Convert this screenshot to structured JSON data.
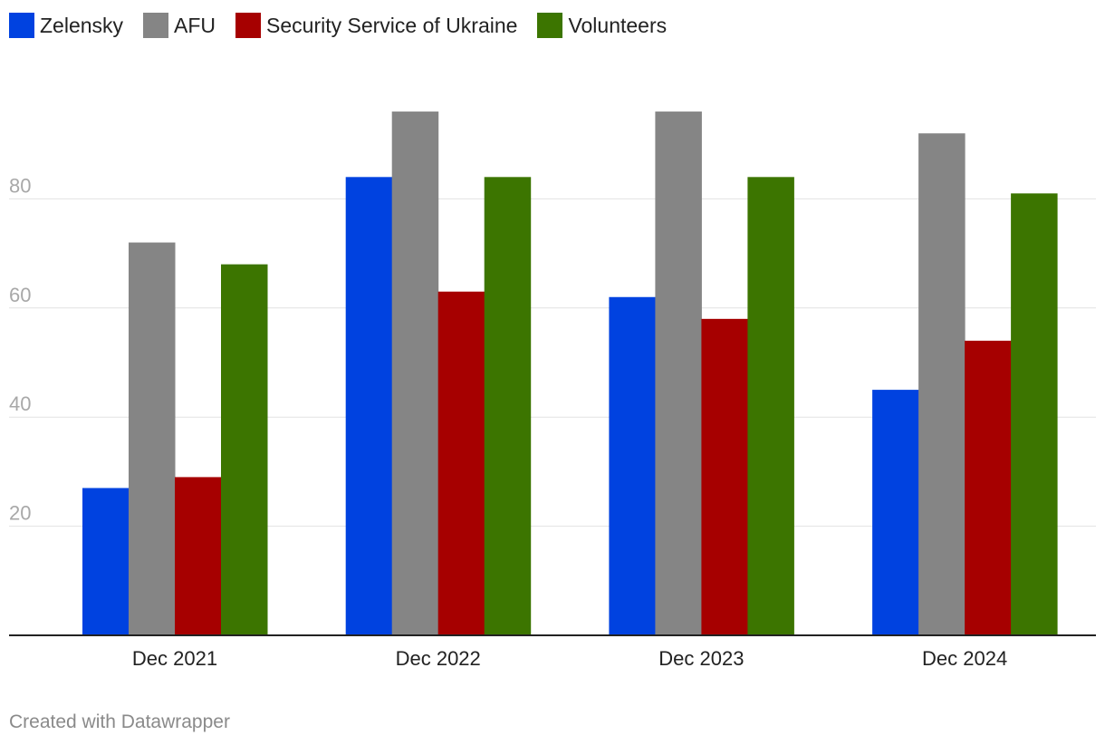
{
  "chart_data": {
    "type": "bar",
    "title": "",
    "xlabel": "",
    "ylabel": "",
    "categories": [
      "Dec 2021",
      "Dec 2022",
      "Dec 2023",
      "Dec 2024"
    ],
    "series": [
      {
        "name": "Zelensky",
        "color": "#0042e0",
        "values": [
          27,
          84,
          62,
          45
        ]
      },
      {
        "name": "AFU",
        "color": "#858585",
        "values": [
          72,
          96,
          96,
          92
        ]
      },
      {
        "name": "Security Service of Ukraine",
        "color": "#a60000",
        "values": [
          29,
          63,
          58,
          54
        ]
      },
      {
        "name": "Volunteers",
        "color": "#3c7500",
        "values": [
          68,
          84,
          84,
          81
        ]
      }
    ],
    "ylim": [
      0,
      100
    ],
    "yticks": [
      20,
      40,
      60,
      80
    ],
    "ytick_labels": [
      "20",
      "40",
      "60",
      "80"
    ],
    "grid": true,
    "legend_position": "top-left"
  },
  "legend": {
    "items": [
      {
        "label": "Zelensky",
        "color": "#0042e0"
      },
      {
        "label": "AFU",
        "color": "#858585"
      },
      {
        "label": "Security Service of Ukraine",
        "color": "#a60000"
      },
      {
        "label": "Volunteers",
        "color": "#3c7500"
      }
    ]
  },
  "footer": {
    "credit": "Created with Datawrapper"
  }
}
